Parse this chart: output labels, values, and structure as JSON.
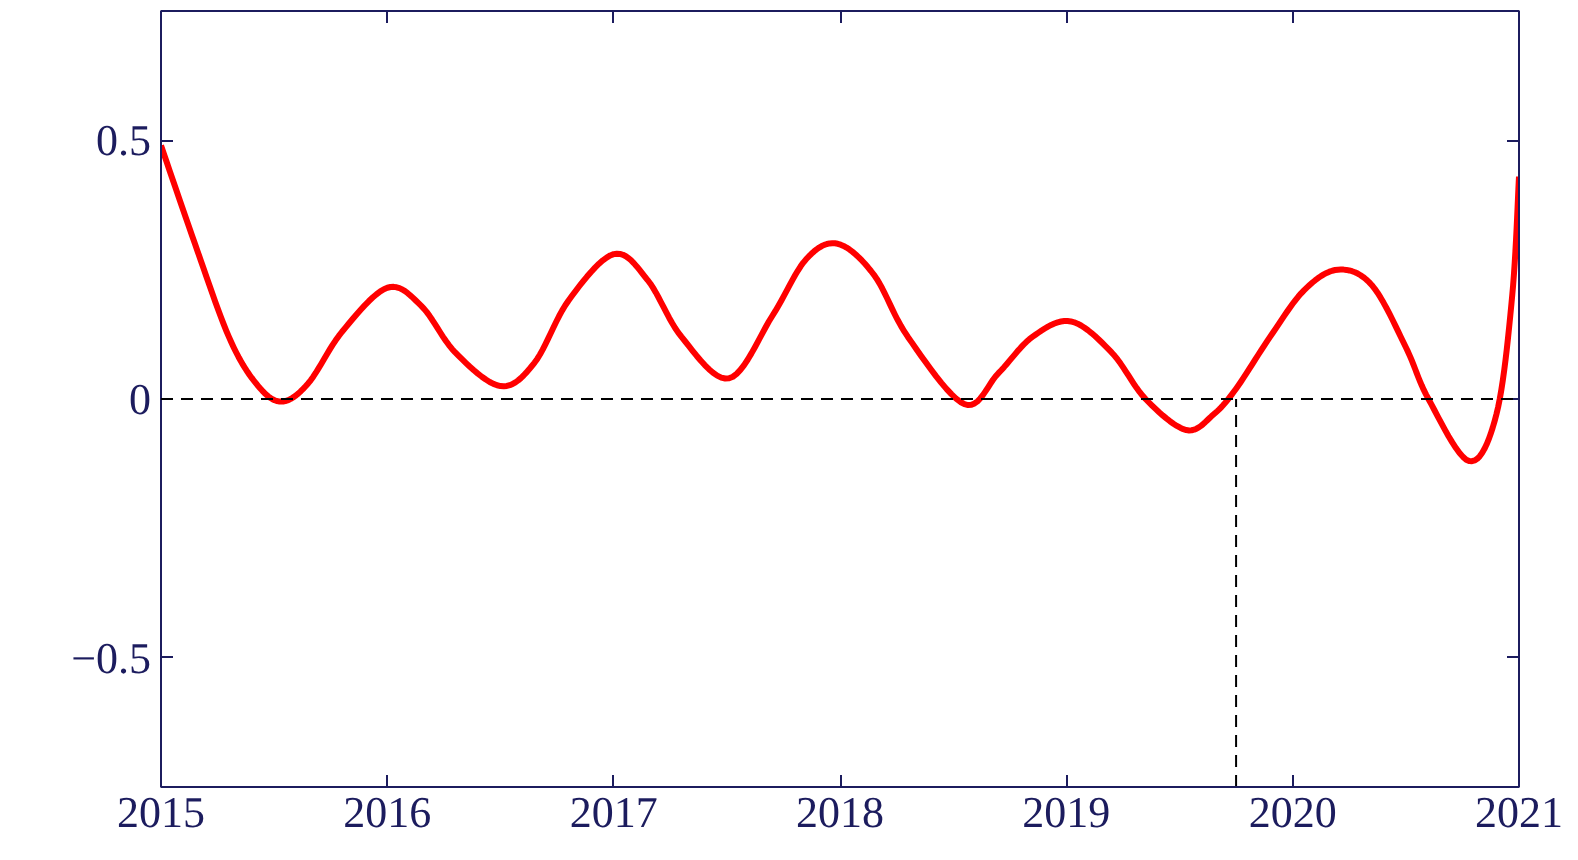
{
  "chart_data": {
    "type": "line",
    "xlim": [
      2015,
      2021
    ],
    "ylim": [
      -0.75,
      0.75
    ],
    "xticks": [
      2015,
      2016,
      2017,
      2018,
      2019,
      2020,
      2021
    ],
    "yticks": [
      {
        "value": -0.5,
        "label": "−0.5"
      },
      0,
      0.5
    ],
    "grid": false,
    "line_style": "solid",
    "x": [
      2015,
      2015.15,
      2015.3,
      2015.42,
      2015.53,
      2015.65,
      2015.8,
      2016.0,
      2016.15,
      2016.3,
      2016.5,
      2016.65,
      2016.8,
      2017.0,
      2017.15,
      2017.3,
      2017.51,
      2017.7,
      2017.85,
      2017.99,
      2018.15,
      2018.3,
      2018.55,
      2018.7,
      2018.85,
      2019.02,
      2019.2,
      2019.35,
      2019.53,
      2019.65,
      2019.75,
      2019.9,
      2020.05,
      2020.2,
      2020.35,
      2020.5,
      2020.6,
      2020.78,
      2020.9,
      2020.97,
      2021
    ],
    "series": [
      {
        "color": "#ff0000",
        "values": [
          0.49,
          0.3,
          0.12,
          0.03,
          -0.005,
          0.03,
          0.13,
          0.215,
          0.18,
          0.09,
          0.025,
          0.07,
          0.19,
          0.28,
          0.23,
          0.12,
          0.04,
          0.16,
          0.27,
          0.3,
          0.24,
          0.12,
          -0.01,
          0.05,
          0.12,
          0.15,
          0.09,
          0.0,
          -0.06,
          -0.03,
          0.02,
          0.12,
          0.21,
          0.25,
          0.22,
          0.1,
          0.0,
          -0.12,
          -0.03,
          0.2,
          0.43
        ]
      }
    ],
    "ref_lines": [
      {
        "axis": "y",
        "value": 0,
        "color": "#000000",
        "line_style": "dashed"
      },
      {
        "axis": "x",
        "value": 2019.75,
        "color": "#000000",
        "line_style": "dashed"
      }
    ]
  }
}
